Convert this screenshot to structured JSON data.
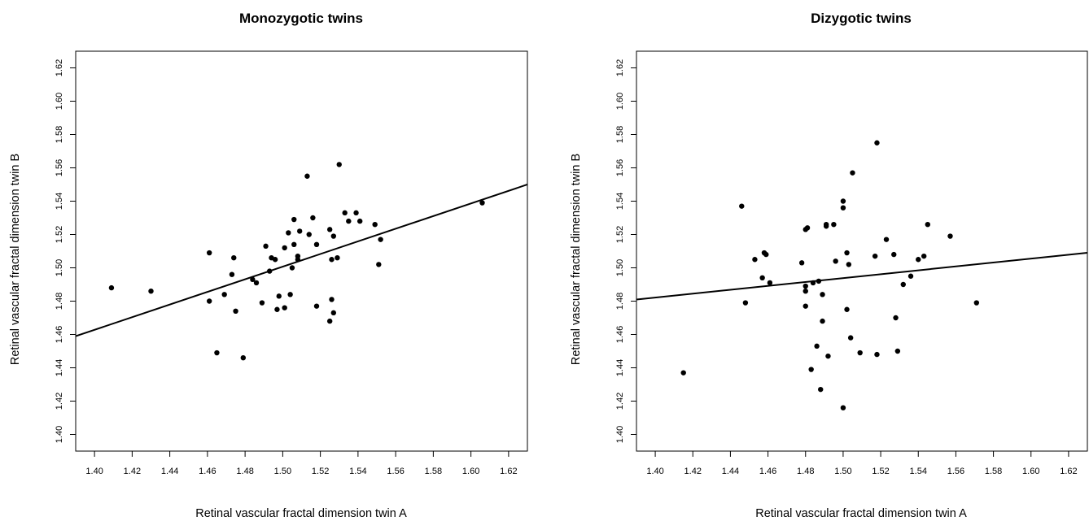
{
  "chart_data": [
    {
      "type": "scatter",
      "title": "Monozygotic twins",
      "xlabel": "Retinal vascular fractal dimension twin A",
      "ylabel": "Retinal vascular fractal dimension twin B",
      "xlim": [
        1.39,
        1.63
      ],
      "ylim": [
        1.39,
        1.63
      ],
      "xticks": [
        "1.40",
        "1.42",
        "1.44",
        "1.46",
        "1.48",
        "1.50",
        "1.52",
        "1.54",
        "1.56",
        "1.58",
        "1.60",
        "1.62"
      ],
      "yticks": [
        "1.40",
        "1.42",
        "1.44",
        "1.46",
        "1.48",
        "1.50",
        "1.52",
        "1.54",
        "1.56",
        "1.58",
        "1.60",
        "1.62"
      ],
      "grid": false,
      "regression_line": {
        "x": [
          1.39,
          1.63
        ],
        "y": [
          1.459,
          1.55
        ]
      },
      "points": [
        {
          "x": 1.409,
          "y": 1.488
        },
        {
          "x": 1.43,
          "y": 1.486
        },
        {
          "x": 1.461,
          "y": 1.509
        },
        {
          "x": 1.461,
          "y": 1.48
        },
        {
          "x": 1.465,
          "y": 1.449
        },
        {
          "x": 1.469,
          "y": 1.484
        },
        {
          "x": 1.473,
          "y": 1.496
        },
        {
          "x": 1.474,
          "y": 1.506
        },
        {
          "x": 1.475,
          "y": 1.474
        },
        {
          "x": 1.479,
          "y": 1.446
        },
        {
          "x": 1.484,
          "y": 1.493
        },
        {
          "x": 1.486,
          "y": 1.491
        },
        {
          "x": 1.489,
          "y": 1.479
        },
        {
          "x": 1.491,
          "y": 1.513
        },
        {
          "x": 1.493,
          "y": 1.498
        },
        {
          "x": 1.494,
          "y": 1.506
        },
        {
          "x": 1.496,
          "y": 1.505
        },
        {
          "x": 1.497,
          "y": 1.475
        },
        {
          "x": 1.498,
          "y": 1.483
        },
        {
          "x": 1.501,
          "y": 1.476
        },
        {
          "x": 1.501,
          "y": 1.512
        },
        {
          "x": 1.503,
          "y": 1.521
        },
        {
          "x": 1.504,
          "y": 1.484
        },
        {
          "x": 1.505,
          "y": 1.5
        },
        {
          "x": 1.506,
          "y": 1.529
        },
        {
          "x": 1.506,
          "y": 1.514
        },
        {
          "x": 1.508,
          "y": 1.507
        },
        {
          "x": 1.508,
          "y": 1.505
        },
        {
          "x": 1.509,
          "y": 1.522
        },
        {
          "x": 1.513,
          "y": 1.555
        },
        {
          "x": 1.514,
          "y": 1.52
        },
        {
          "x": 1.516,
          "y": 1.53
        },
        {
          "x": 1.518,
          "y": 1.514
        },
        {
          "x": 1.518,
          "y": 1.477
        },
        {
          "x": 1.525,
          "y": 1.523
        },
        {
          "x": 1.525,
          "y": 1.468
        },
        {
          "x": 1.526,
          "y": 1.505
        },
        {
          "x": 1.526,
          "y": 1.481
        },
        {
          "x": 1.527,
          "y": 1.473
        },
        {
          "x": 1.527,
          "y": 1.519
        },
        {
          "x": 1.529,
          "y": 1.506
        },
        {
          "x": 1.53,
          "y": 1.562
        },
        {
          "x": 1.533,
          "y": 1.533
        },
        {
          "x": 1.535,
          "y": 1.528
        },
        {
          "x": 1.539,
          "y": 1.533
        },
        {
          "x": 1.541,
          "y": 1.528
        },
        {
          "x": 1.549,
          "y": 1.526
        },
        {
          "x": 1.551,
          "y": 1.502
        },
        {
          "x": 1.552,
          "y": 1.517
        },
        {
          "x": 1.606,
          "y": 1.539
        }
      ]
    },
    {
      "type": "scatter",
      "title": "Dizygotic twins",
      "xlabel": "Retinal vascular fractal dimension twin A",
      "ylabel": "Retinal vascular fractal dimension twin B",
      "xlim": [
        1.39,
        1.63
      ],
      "ylim": [
        1.39,
        1.63
      ],
      "xticks": [
        "1.40",
        "1.42",
        "1.44",
        "1.46",
        "1.48",
        "1.50",
        "1.52",
        "1.54",
        "1.56",
        "1.58",
        "1.60",
        "1.62"
      ],
      "yticks": [
        "1.40",
        "1.42",
        "1.44",
        "1.46",
        "1.48",
        "1.50",
        "1.52",
        "1.54",
        "1.56",
        "1.58",
        "1.60",
        "1.62"
      ],
      "grid": false,
      "regression_line": {
        "x": [
          1.39,
          1.63
        ],
        "y": [
          1.481,
          1.509
        ]
      },
      "points": [
        {
          "x": 1.415,
          "y": 1.437
        },
        {
          "x": 1.446,
          "y": 1.537
        },
        {
          "x": 1.448,
          "y": 1.479
        },
        {
          "x": 1.453,
          "y": 1.505
        },
        {
          "x": 1.457,
          "y": 1.494
        },
        {
          "x": 1.458,
          "y": 1.509
        },
        {
          "x": 1.459,
          "y": 1.508
        },
        {
          "x": 1.461,
          "y": 1.491
        },
        {
          "x": 1.478,
          "y": 1.503
        },
        {
          "x": 1.48,
          "y": 1.523
        },
        {
          "x": 1.48,
          "y": 1.489
        },
        {
          "x": 1.48,
          "y": 1.486
        },
        {
          "x": 1.48,
          "y": 1.477
        },
        {
          "x": 1.481,
          "y": 1.524
        },
        {
          "x": 1.483,
          "y": 1.439
        },
        {
          "x": 1.484,
          "y": 1.491
        },
        {
          "x": 1.486,
          "y": 1.453
        },
        {
          "x": 1.487,
          "y": 1.492
        },
        {
          "x": 1.488,
          "y": 1.427
        },
        {
          "x": 1.489,
          "y": 1.468
        },
        {
          "x": 1.489,
          "y": 1.484
        },
        {
          "x": 1.491,
          "y": 1.525
        },
        {
          "x": 1.491,
          "y": 1.526
        },
        {
          "x": 1.492,
          "y": 1.447
        },
        {
          "x": 1.495,
          "y": 1.526
        },
        {
          "x": 1.496,
          "y": 1.504
        },
        {
          "x": 1.5,
          "y": 1.54
        },
        {
          "x": 1.5,
          "y": 1.536
        },
        {
          "x": 1.5,
          "y": 1.416
        },
        {
          "x": 1.502,
          "y": 1.509
        },
        {
          "x": 1.502,
          "y": 1.475
        },
        {
          "x": 1.503,
          "y": 1.502
        },
        {
          "x": 1.504,
          "y": 1.458
        },
        {
          "x": 1.505,
          "y": 1.557
        },
        {
          "x": 1.509,
          "y": 1.449
        },
        {
          "x": 1.517,
          "y": 1.507
        },
        {
          "x": 1.518,
          "y": 1.575
        },
        {
          "x": 1.518,
          "y": 1.448
        },
        {
          "x": 1.523,
          "y": 1.517
        },
        {
          "x": 1.527,
          "y": 1.508
        },
        {
          "x": 1.528,
          "y": 1.47
        },
        {
          "x": 1.529,
          "y": 1.45
        },
        {
          "x": 1.532,
          "y": 1.49
        },
        {
          "x": 1.536,
          "y": 1.495
        },
        {
          "x": 1.54,
          "y": 1.505
        },
        {
          "x": 1.543,
          "y": 1.507
        },
        {
          "x": 1.545,
          "y": 1.526
        },
        {
          "x": 1.557,
          "y": 1.519
        },
        {
          "x": 1.571,
          "y": 1.479
        }
      ]
    }
  ]
}
